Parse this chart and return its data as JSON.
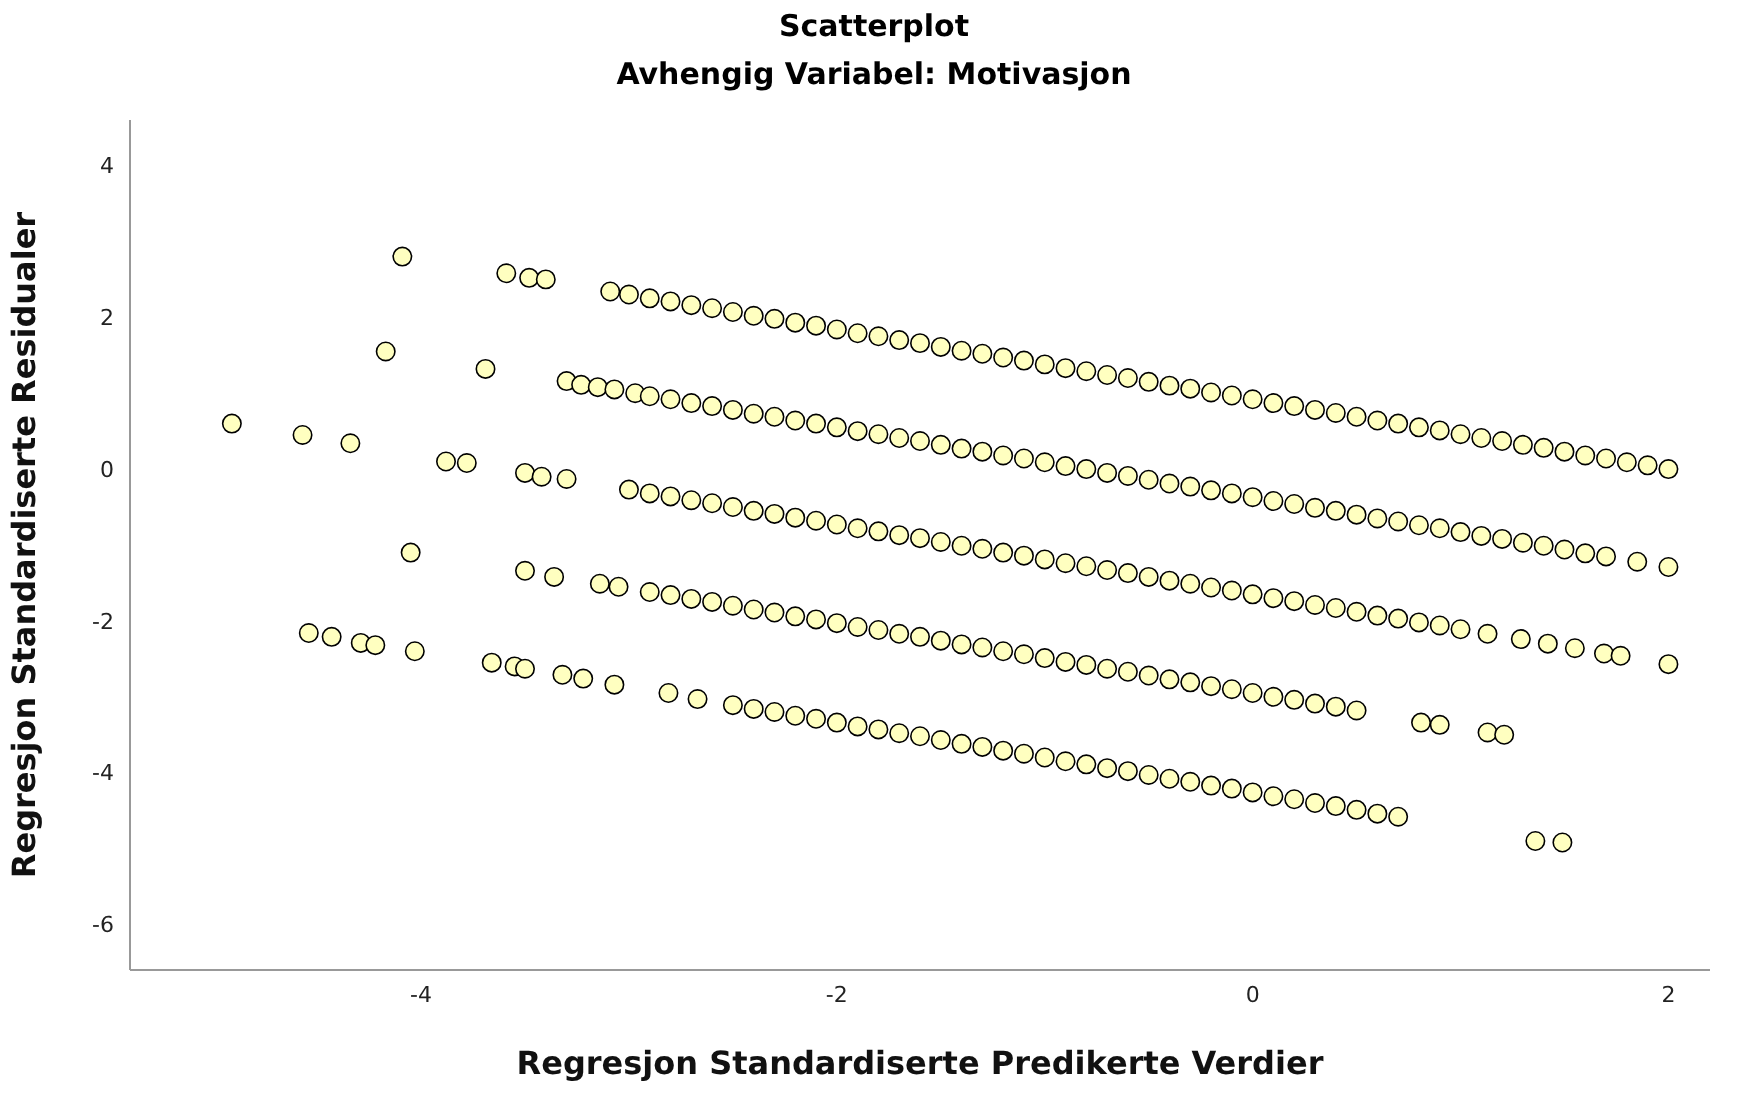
{
  "chart_data": {
    "type": "scatter",
    "title": "Scatterplot",
    "subtitle": "Avhengig Variabel: Motivasjon",
    "xlabel": "Regresjon Standardiserte Predikerte Verdier",
    "ylabel": "Regresjon Standardiserte Residualer",
    "xlim": [
      -5.4,
      2.2
    ],
    "ylim": [
      -6.6,
      4.6
    ],
    "xticks": [
      -4,
      -2,
      0,
      2
    ],
    "yticks": [
      -6,
      -4,
      -2,
      0,
      2,
      4
    ],
    "marker": "circle",
    "series": [
      {
        "color": "#ffffc0",
        "x": [
          -4.91,
          -4.57,
          -4.34,
          -4.17,
          -4.09,
          -4.05,
          -4.54,
          -4.43,
          -4.29,
          -4.22,
          -4.03,
          -3.88,
          -3.78,
          -3.69,
          -3.59,
          -3.48,
          -3.4,
          -3.5,
          -3.42,
          -3.3,
          -3.5,
          -3.36,
          -3.66,
          -3.55,
          -3.5,
          -3.32,
          -3.22,
          -3.07,
          -3.3,
          -3.23,
          -3.15,
          -3.07,
          -3.09,
          -3.0,
          -2.9,
          -2.8,
          -2.7,
          -2.6,
          -2.5,
          -2.4,
          -2.3,
          -2.2,
          -2.1,
          -2.0,
          -1.9,
          -1.8,
          -1.7,
          -1.6,
          -1.5,
          -1.4,
          -1.3,
          -1.2,
          -1.1,
          -1.0,
          -0.9,
          -0.8,
          -0.7,
          -0.6,
          -0.5,
          -0.4,
          -0.3,
          -0.2,
          -0.1,
          0,
          0.1,
          0.2,
          0.3,
          0.4,
          0.5,
          0.6,
          0.7,
          0.8,
          0.9,
          1.0,
          1.1,
          1.2,
          1.3,
          1.4,
          1.5,
          1.6,
          1.7,
          1.8,
          1.9,
          2.0,
          -2.97,
          -2.9,
          -2.8,
          -2.7,
          -2.6,
          -2.5,
          -2.4,
          -2.3,
          -2.2,
          -2.1,
          -2.0,
          -1.9,
          -1.8,
          -1.7,
          -1.6,
          -1.5,
          -1.4,
          -1.3,
          -1.2,
          -1.1,
          -1.0,
          -0.9,
          -0.8,
          -0.7,
          -0.6,
          -0.5,
          -0.4,
          -0.3,
          -0.2,
          -0.1,
          0,
          0.1,
          0.2,
          0.3,
          0.4,
          0.5,
          0.6,
          0.7,
          0.8,
          0.9,
          1.0,
          1.1,
          1.2,
          1.3,
          1.4,
          1.5,
          1.6,
          1.7,
          1.85,
          2.0,
          -3.0,
          -2.9,
          -2.8,
          -2.7,
          -2.6,
          -2.5,
          -2.4,
          -2.3,
          -2.2,
          -2.1,
          -2.0,
          -1.9,
          -1.8,
          -1.7,
          -1.6,
          -1.5,
          -1.4,
          -1.3,
          -1.2,
          -1.1,
          -1.0,
          -0.9,
          -0.8,
          -0.7,
          -0.6,
          -0.5,
          -0.4,
          -0.3,
          -0.2,
          -0.1,
          0,
          0.1,
          0.2,
          0.3,
          0.4,
          0.5,
          0.6,
          0.7,
          0.8,
          0.9,
          1.0,
          1.13,
          1.29,
          1.42,
          1.55,
          1.69,
          1.77,
          2.0,
          -3.14,
          -3.05,
          -2.9,
          -2.8,
          -2.7,
          -2.6,
          -2.5,
          -2.4,
          -2.3,
          -2.2,
          -2.1,
          -2.0,
          -1.9,
          -1.8,
          -1.7,
          -1.6,
          -1.5,
          -1.4,
          -1.3,
          -1.2,
          -1.1,
          -1.0,
          -0.9,
          -0.8,
          -0.7,
          -0.6,
          -0.5,
          -0.4,
          -0.3,
          -0.2,
          -0.1,
          0,
          0.1,
          0.2,
          0.3,
          0.4,
          0.5,
          0.81,
          0.9,
          1.13,
          1.21,
          -2.81,
          -2.67,
          -2.5,
          -2.4,
          -2.3,
          -2.2,
          -2.1,
          -2.0,
          -1.9,
          -1.8,
          -1.7,
          -1.6,
          -1.5,
          -1.4,
          -1.3,
          -1.2,
          -1.1,
          -1.0,
          -0.9,
          -0.8,
          -0.7,
          -0.6,
          -0.5,
          -0.4,
          -0.3,
          -0.2,
          -0.1,
          0,
          0.1,
          0.2,
          0.3,
          0.4,
          0.5,
          0.6,
          0.7,
          1.36,
          1.49
        ],
        "values": [
          0.6,
          0.45,
          0.34,
          1.55,
          2.8,
          -1.1,
          -2.16,
          -2.21,
          -2.29,
          -2.32,
          -2.4,
          0.1,
          0.08,
          1.32,
          2.58,
          2.52,
          2.5,
          -0.05,
          -0.1,
          -0.13,
          -1.34,
          -1.42,
          -2.55,
          -2.6,
          -2.63,
          -2.71,
          -2.76,
          -2.84,
          1.16,
          1.11,
          1.08,
          1.05,
          2.34,
          2.3,
          2.25,
          2.21,
          2.16,
          2.12,
          2.07,
          2.02,
          1.98,
          1.93,
          1.89,
          1.84,
          1.79,
          1.75,
          1.7,
          1.66,
          1.61,
          1.56,
          1.52,
          1.47,
          1.43,
          1.38,
          1.33,
          1.29,
          1.24,
          1.2,
          1.15,
          1.1,
          1.06,
          1.01,
          0.97,
          0.92,
          0.87,
          0.83,
          0.78,
          0.74,
          0.69,
          0.64,
          0.6,
          0.55,
          0.51,
          0.46,
          0.41,
          0.37,
          0.32,
          0.28,
          0.23,
          0.18,
          0.14,
          0.09,
          0.05,
          0.0,
          1.0,
          0.96,
          0.92,
          0.87,
          0.83,
          0.78,
          0.73,
          0.69,
          0.64,
          0.6,
          0.55,
          0.5,
          0.46,
          0.41,
          0.37,
          0.32,
          0.27,
          0.23,
          0.18,
          0.14,
          0.09,
          0.04,
          0.0,
          -0.05,
          -0.09,
          -0.14,
          -0.19,
          -0.23,
          -0.28,
          -0.32,
          -0.37,
          -0.42,
          -0.46,
          -0.51,
          -0.55,
          -0.6,
          -0.65,
          -0.69,
          -0.74,
          -0.78,
          -0.83,
          -0.88,
          -0.92,
          -0.97,
          -1.01,
          -1.06,
          -1.11,
          -1.15,
          -1.22,
          -1.29,
          -0.27,
          -0.32,
          -0.36,
          -0.41,
          -0.45,
          -0.5,
          -0.55,
          -0.59,
          -0.64,
          -0.68,
          -0.73,
          -0.78,
          -0.82,
          -0.87,
          -0.91,
          -0.96,
          -1.01,
          -1.05,
          -1.1,
          -1.14,
          -1.19,
          -1.24,
          -1.28,
          -1.33,
          -1.37,
          -1.42,
          -1.47,
          -1.51,
          -1.56,
          -1.6,
          -1.65,
          -1.7,
          -1.74,
          -1.79,
          -1.83,
          -1.88,
          -1.93,
          -1.97,
          -2.02,
          -2.06,
          -2.11,
          -2.17,
          -2.24,
          -2.3,
          -2.36,
          -2.43,
          -2.46,
          -2.57,
          -1.51,
          -1.55,
          -1.62,
          -1.66,
          -1.71,
          -1.75,
          -1.8,
          -1.85,
          -1.89,
          -1.94,
          -1.98,
          -2.03,
          -2.08,
          -2.12,
          -2.17,
          -2.21,
          -2.26,
          -2.31,
          -2.35,
          -2.4,
          -2.44,
          -2.49,
          -2.54,
          -2.58,
          -2.63,
          -2.67,
          -2.72,
          -2.77,
          -2.81,
          -2.86,
          -2.9,
          -2.95,
          -3.0,
          -3.04,
          -3.09,
          -3.13,
          -3.18,
          -3.34,
          -3.37,
          -3.47,
          -3.5,
          -2.95,
          -3.03,
          -3.11,
          -3.16,
          -3.2,
          -3.25,
          -3.29,
          -3.34,
          -3.39,
          -3.43,
          -3.48,
          -3.52,
          -3.57,
          -3.62,
          -3.66,
          -3.71,
          -3.75,
          -3.8,
          -3.85,
          -3.89,
          -3.94,
          -3.98,
          -4.03,
          -4.08,
          -4.12,
          -4.17,
          -4.21,
          -4.26,
          -4.31,
          -4.35,
          -4.4,
          -4.44,
          -4.49,
          -4.54,
          -4.58,
          -4.9,
          -4.92
        ]
      }
    ]
  }
}
